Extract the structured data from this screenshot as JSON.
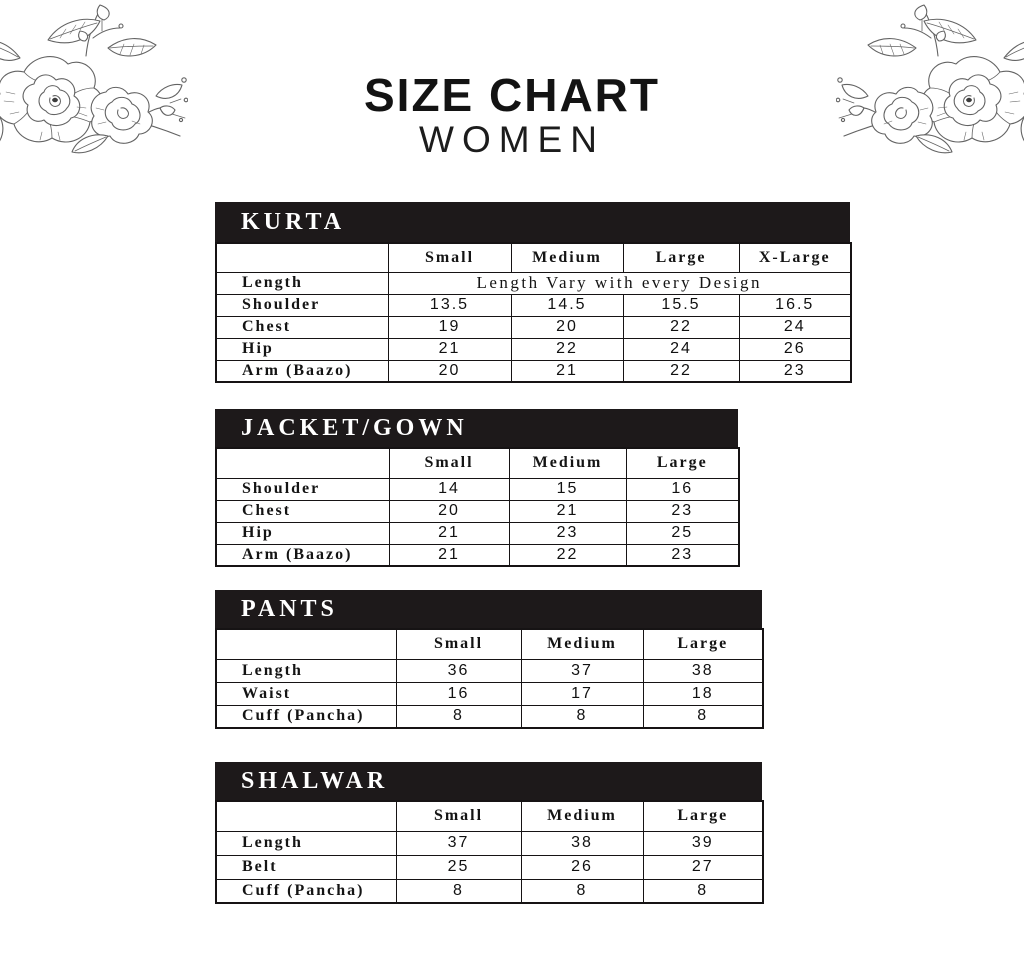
{
  "page": {
    "title": "SIZE CHART",
    "subtitle": "WOMEN"
  },
  "colors": {
    "bar_background": "#1d191a",
    "bar_text": "#ffffff",
    "table_border": "#161314",
    "text": "#141414",
    "sketch_stroke": "#636363",
    "page_background": "#ffffff"
  },
  "decor": {
    "left_corner": "pencil-floral-sketch",
    "right_corner": "pencil-floral-sketch-mirrored"
  },
  "tables": [
    {
      "name": "KURTA",
      "columns": [
        "",
        "Small",
        "Medium",
        "Large",
        "X-Large"
      ],
      "rows": [
        {
          "label": "Length",
          "span_text": "Length Vary with every Design"
        },
        {
          "label": "Shoulder",
          "values": [
            "13.5",
            "14.5",
            "15.5",
            "16.5"
          ]
        },
        {
          "label": "Chest",
          "values": [
            "19",
            "20",
            "22",
            "24"
          ]
        },
        {
          "label": "Hip",
          "values": [
            "21",
            "22",
            "24",
            "26"
          ]
        },
        {
          "label": "Arm (Baazo)",
          "values": [
            "20",
            "21",
            "22",
            "23"
          ]
        }
      ]
    },
    {
      "name": "JACKET/GOWN",
      "columns": [
        "",
        "Small",
        "Medium",
        "Large"
      ],
      "rows": [
        {
          "label": "Shoulder",
          "values": [
            "14",
            "15",
            "16"
          ]
        },
        {
          "label": "Chest",
          "values": [
            "20",
            "21",
            "23"
          ]
        },
        {
          "label": "Hip",
          "values": [
            "21",
            "23",
            "25"
          ]
        },
        {
          "label": "Arm (Baazo)",
          "values": [
            "21",
            "22",
            "23"
          ]
        }
      ]
    },
    {
      "name": "PANTS",
      "columns": [
        "",
        "Small",
        "Medium",
        "Large"
      ],
      "rows": [
        {
          "label": "Length",
          "values": [
            "36",
            "37",
            "38"
          ]
        },
        {
          "label": "Waist",
          "values": [
            "16",
            "17",
            "18"
          ]
        },
        {
          "label": "Cuff (Pancha)",
          "values": [
            "8",
            "8",
            "8"
          ]
        }
      ]
    },
    {
      "name": "SHALWAR",
      "columns": [
        "",
        "Small",
        "Medium",
        "Large"
      ],
      "rows": [
        {
          "label": "Length",
          "values": [
            "37",
            "38",
            "39"
          ]
        },
        {
          "label": "Belt",
          "values": [
            "25",
            "26",
            "27"
          ]
        },
        {
          "label": "Cuff (Pancha)",
          "values": [
            "8",
            "8",
            "8"
          ]
        }
      ]
    }
  ]
}
